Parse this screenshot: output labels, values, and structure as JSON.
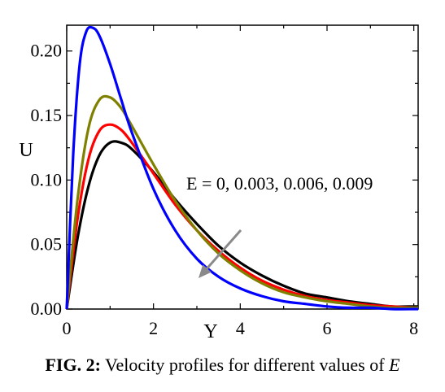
{
  "chart_data": {
    "type": "line",
    "xlabel": "Y",
    "ylabel": "U",
    "xlim": [
      0,
      8.1
    ],
    "ylim": [
      0,
      0.22
    ],
    "xticks": [
      "0",
      "2",
      "4",
      "6",
      "8"
    ],
    "yticks": [
      "0.00",
      "0.05",
      "0.10",
      "0.15",
      "0.20"
    ],
    "annotation": "E = 0, 0.003, 0.006, 0.009",
    "series": [
      {
        "color": "#000000",
        "x": [
          0,
          0.25,
          0.5,
          0.75,
          1.0,
          1.25,
          1.5,
          2.0,
          2.5,
          3.0,
          3.5,
          4.0,
          4.5,
          5.0,
          5.5,
          6.0,
          6.5,
          7.0,
          7.5,
          8.0,
          8.1
        ],
        "values": [
          0,
          0.055,
          0.095,
          0.119,
          0.129,
          0.129,
          0.124,
          0.106,
          0.085,
          0.066,
          0.049,
          0.036,
          0.026,
          0.018,
          0.012,
          0.009,
          0.006,
          0.004,
          0.002,
          0.002,
          0.002
        ]
      },
      {
        "color": "#ff0000",
        "x": [
          0,
          0.25,
          0.5,
          0.75,
          1.0,
          1.25,
          1.5,
          2.0,
          2.5,
          3.0,
          3.5,
          4.0,
          4.5,
          5.0,
          5.5,
          6.0,
          6.5,
          7.0,
          7.5,
          8.0,
          8.1
        ],
        "values": [
          0,
          0.07,
          0.116,
          0.138,
          0.143,
          0.139,
          0.129,
          0.105,
          0.081,
          0.061,
          0.045,
          0.032,
          0.022,
          0.015,
          0.01,
          0.007,
          0.005,
          0.003,
          0.002,
          0.001,
          0.001
        ]
      },
      {
        "color": "#808000",
        "x": [
          0,
          0.25,
          0.5,
          0.75,
          1.0,
          1.25,
          1.5,
          2.0,
          2.5,
          3.0,
          3.5,
          4.0,
          4.5,
          5.0,
          5.5,
          6.0,
          6.5,
          7.0,
          7.5,
          8.0,
          8.1
        ],
        "values": [
          0,
          0.085,
          0.14,
          0.162,
          0.164,
          0.156,
          0.142,
          0.112,
          0.084,
          0.061,
          0.043,
          0.03,
          0.02,
          0.013,
          0.009,
          0.006,
          0.004,
          0.002,
          0.001,
          0.001,
          0.001
        ]
      },
      {
        "color": "#0000ff",
        "x": [
          0,
          0.15,
          0.3,
          0.45,
          0.6,
          0.75,
          1.0,
          1.25,
          1.5,
          2.0,
          2.5,
          3.0,
          3.5,
          4.0,
          4.5,
          5.0,
          5.5,
          6.0,
          6.5,
          7.0,
          7.5,
          8.0,
          8.1
        ],
        "values": [
          0,
          0.12,
          0.19,
          0.215,
          0.218,
          0.212,
          0.19,
          0.163,
          0.137,
          0.093,
          0.061,
          0.039,
          0.025,
          0.016,
          0.01,
          0.006,
          0.004,
          0.002,
          0.001,
          0.001,
          0.0,
          0.0,
          0.0
        ]
      }
    ]
  },
  "caption": {
    "label": "FIG. 2:",
    "text": " Velocity profiles for different values of ",
    "symbol": "E"
  }
}
